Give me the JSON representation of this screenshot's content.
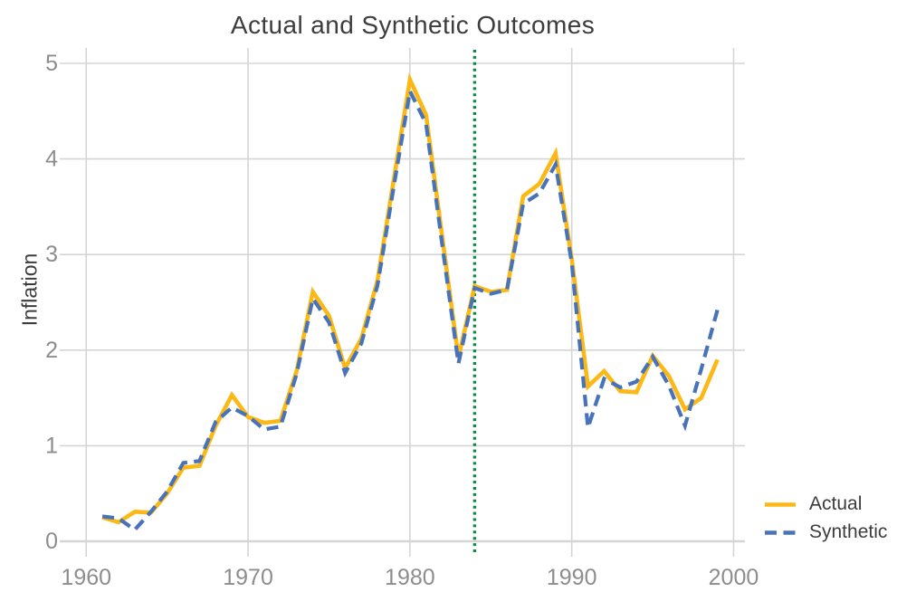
{
  "chart": {
    "title": "Actual and Synthetic Outcomes",
    "y_axis_title": "Inflation",
    "legend": {
      "items": [
        {
          "label": "Actual",
          "color": "#FCB814",
          "line_style": "solid"
        },
        {
          "label": "Synthetic",
          "color": "#4973B8",
          "line_style": "dashed"
        }
      ]
    }
  },
  "chart_data": {
    "type": "line",
    "title": "Actual and Synthetic Outcomes",
    "xlabel": "",
    "ylabel": "Inflation",
    "x": [
      1961,
      1962,
      1963,
      1964,
      1965,
      1966,
      1967,
      1968,
      1969,
      1970,
      1971,
      1972,
      1973,
      1974,
      1975,
      1976,
      1977,
      1978,
      1979,
      1980,
      1981,
      1982,
      1983,
      1984,
      1985,
      1986,
      1987,
      1988,
      1989,
      1990,
      1991,
      1992,
      1993,
      1994,
      1995,
      1996,
      1997,
      1998,
      1999
    ],
    "series": [
      {
        "name": "Actual",
        "color": "#FCB814",
        "style": "solid",
        "values": [
          0.25,
          0.2,
          0.31,
          0.3,
          0.5,
          0.77,
          0.79,
          1.21,
          1.53,
          1.3,
          1.24,
          1.26,
          1.78,
          2.61,
          2.36,
          1.81,
          2.12,
          2.73,
          3.78,
          4.83,
          4.46,
          3.18,
          1.92,
          2.67,
          2.61,
          2.63,
          3.61,
          3.74,
          4.06,
          2.95,
          1.62,
          1.78,
          1.57,
          1.56,
          1.94,
          1.73,
          1.38,
          1.5,
          1.9
        ]
      },
      {
        "name": "Synthetic",
        "color": "#4973B8",
        "style": "dashed",
        "values": [
          0.26,
          0.24,
          0.12,
          0.31,
          0.52,
          0.82,
          0.84,
          1.25,
          1.4,
          1.31,
          1.17,
          1.2,
          1.75,
          2.54,
          2.29,
          1.76,
          2.07,
          2.68,
          3.71,
          4.71,
          4.37,
          3.1,
          1.86,
          2.65,
          2.59,
          2.63,
          3.53,
          3.64,
          3.94,
          2.91,
          1.19,
          1.7,
          1.61,
          1.67,
          1.93,
          1.63,
          1.21,
          1.8,
          2.42
        ]
      }
    ],
    "vline": {
      "x": 1984,
      "color": "#0B8A42",
      "style": "dotted"
    },
    "xlim": [
      1958.7,
      2000.7
    ],
    "ylim": [
      0,
      5
    ],
    "xticks": [
      1960,
      1970,
      1980,
      1990,
      2000
    ],
    "yticks": [
      0,
      1,
      2,
      3,
      4,
      5
    ],
    "grid": true,
    "legend_position": "bottom-right",
    "grid_color": "#D5D5D5",
    "tick_label_color": "#8D8D8D"
  }
}
